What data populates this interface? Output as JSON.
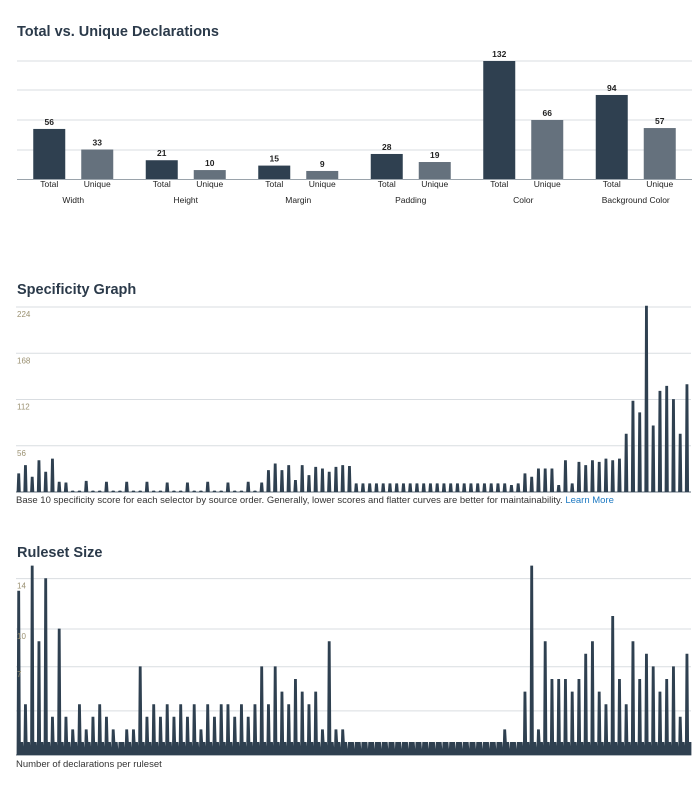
{
  "colors": {
    "total": "#2f4050",
    "unique": "#65717d",
    "area": "#2f4050",
    "grid": "#d9dde1",
    "tick": "#9a9070",
    "link": "#1f7ac2"
  },
  "chart_data": [
    {
      "type": "bar",
      "title": "Total vs. Unique Declarations",
      "categories": [
        "Width",
        "Height",
        "Margin",
        "Padding",
        "Color",
        "Background Color"
      ],
      "sub_labels": [
        "Total",
        "Unique"
      ],
      "series": [
        {
          "name": "Total",
          "values": [
            56,
            21,
            15,
            28,
            132,
            94
          ]
        },
        {
          "name": "Unique",
          "values": [
            33,
            10,
            9,
            19,
            66,
            57
          ]
        }
      ],
      "ylim": [
        0,
        132
      ],
      "grid": true
    },
    {
      "type": "area",
      "title": "Specificity Graph",
      "yticks": [
        "224",
        "168",
        "112",
        "56"
      ],
      "ylim": [
        0,
        224
      ],
      "caption": "Base 10 specificity score for each selector by source order. Generally, lower scores and flatter curves are better for maintainability.",
      "link_text": "Learn More",
      "x": [
        0,
        1,
        2,
        3,
        4,
        5,
        6,
        7,
        8,
        9,
        10,
        11,
        12,
        13,
        14,
        15,
        16,
        17,
        18,
        19,
        20,
        21,
        22,
        23,
        24,
        25,
        26,
        27,
        28,
        29,
        30,
        31,
        32,
        33,
        34,
        35,
        36,
        37,
        38,
        39,
        40,
        41,
        42,
        43,
        44,
        45,
        46,
        47,
        48,
        49,
        50,
        51,
        52,
        53,
        54,
        55,
        56,
        57,
        58,
        59,
        60,
        61,
        62,
        63,
        64,
        65,
        66,
        67,
        68,
        69,
        70,
        71,
        72,
        73,
        74,
        75,
        76,
        77,
        78,
        79,
        80,
        81,
        82,
        83,
        84,
        85,
        86,
        87,
        88,
        89,
        90,
        91,
        92,
        93,
        94,
        95,
        96,
        97,
        98,
        99
      ],
      "values": [
        22,
        32,
        18,
        38,
        24,
        40,
        12,
        11,
        1,
        1,
        13,
        1,
        1,
        12,
        1,
        1,
        12,
        1,
        1,
        12,
        1,
        1,
        11,
        1,
        1,
        11,
        1,
        1,
        12,
        1,
        1,
        11,
        1,
        1,
        12,
        1,
        11,
        26,
        34,
        26,
        32,
        14,
        32,
        20,
        30,
        28,
        24,
        30,
        32,
        31,
        10,
        10,
        10,
        10,
        10,
        10,
        10,
        10,
        10,
        10,
        10,
        10,
        10,
        10,
        10,
        10,
        10,
        10,
        10,
        10,
        10,
        10,
        10,
        8,
        10,
        22,
        18,
        28,
        28,
        28,
        8,
        38,
        10,
        36,
        32,
        38,
        36,
        40,
        38,
        40,
        70,
        110,
        96,
        225,
        80,
        122,
        128,
        112,
        70,
        130
      ],
      "xmax": 99
    },
    {
      "type": "area",
      "title": "Ruleset Size",
      "yticks": [
        "14",
        "10",
        "7"
      ],
      "ylim": [
        0,
        15
      ],
      "caption": "Number of declarations per ruleset",
      "x": [
        0,
        1,
        2,
        3,
        4,
        5,
        6,
        7,
        8,
        9,
        10,
        11,
        12,
        13,
        14,
        15,
        16,
        17,
        18,
        19,
        20,
        21,
        22,
        23,
        24,
        25,
        26,
        27,
        28,
        29,
        30,
        31,
        32,
        33,
        34,
        35,
        36,
        37,
        38,
        39,
        40,
        41,
        42,
        43,
        44,
        45,
        46,
        47,
        48,
        49,
        50,
        51,
        52,
        53,
        54,
        55,
        56,
        57,
        58,
        59,
        60,
        61,
        62,
        63,
        64,
        65,
        66,
        67,
        68,
        69,
        70,
        71,
        72,
        73,
        74,
        75,
        76,
        77,
        78,
        79,
        80,
        81,
        82,
        83,
        84,
        85,
        86,
        87,
        88,
        89,
        90,
        91,
        92,
        93,
        94,
        95,
        96,
        97,
        98,
        99
      ],
      "values": [
        13,
        4,
        15,
        9,
        14,
        3,
        10,
        3,
        2,
        4,
        2,
        3,
        4,
        3,
        2,
        1,
        2,
        2,
        7,
        3,
        4,
        3,
        4,
        3,
        4,
        3,
        4,
        2,
        4,
        3,
        4,
        4,
        3,
        4,
        3,
        4,
        7,
        4,
        7,
        5,
        4,
        6,
        5,
        4,
        5,
        2,
        9,
        2,
        2,
        1,
        1,
        1,
        1,
        1,
        1,
        1,
        1,
        1,
        1,
        1,
        1,
        1,
        1,
        1,
        1,
        1,
        1,
        1,
        1,
        1,
        1,
        1,
        2,
        1,
        1,
        5,
        15,
        2,
        9,
        6,
        6,
        6,
        5,
        6,
        8,
        9,
        5,
        4,
        11,
        6,
        4,
        9,
        6,
        8,
        7,
        5,
        6,
        7,
        3,
        8
      ],
      "xmax": 99
    }
  ]
}
